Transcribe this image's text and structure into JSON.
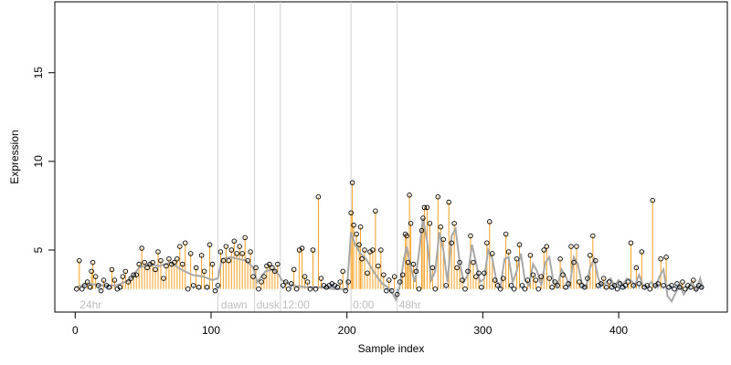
{
  "chart_data": {
    "type": "scatter",
    "title": "",
    "xlabel": "Sample index",
    "ylabel": "Expression",
    "xlim": [
      -15,
      480
    ],
    "ylim": [
      1.5,
      19
    ],
    "xticks": [
      0,
      100,
      200,
      300,
      400
    ],
    "yticks": [
      5,
      10,
      15
    ],
    "grid": false,
    "baseline": 2.8,
    "colors": {
      "points_stroke": "#000000",
      "stems_orange": "#f5a020",
      "stems_blue": "#7aa0d8",
      "smooth_line": "#a8a8a8",
      "separators": "#d0d0d0",
      "condition_labels": "#bdbdbd"
    },
    "conditions": [
      {
        "label": "24hr",
        "x": 2
      },
      {
        "label": "dawn",
        "x": 106
      },
      {
        "label": "dusk",
        "x": 132
      },
      {
        "label": "12:00",
        "x": 151
      },
      {
        "label": "0:00",
        "x": 203
      },
      {
        "label": "48hr",
        "x": 237
      }
    ],
    "separators": [
      105,
      132,
      151,
      203,
      237
    ],
    "points": [
      [
        1,
        2.8
      ],
      [
        3,
        4.4
      ],
      [
        5,
        2.8
      ],
      [
        7,
        3.0
      ],
      [
        9,
        3.2
      ],
      [
        11,
        2.9
      ],
      [
        12,
        3.8
      ],
      [
        13,
        4.3
      ],
      [
        15,
        3.5
      ],
      [
        17,
        3.0
      ],
      [
        19,
        2.7
      ],
      [
        21,
        3.3
      ],
      [
        23,
        3.0
      ],
      [
        25,
        2.9
      ],
      [
        27,
        3.9
      ],
      [
        29,
        3.3
      ],
      [
        31,
        2.8
      ],
      [
        33,
        2.9
      ],
      [
        35,
        3.5
      ],
      [
        37,
        3.8
      ],
      [
        39,
        3.2
      ],
      [
        41,
        3.4
      ],
      [
        43,
        3.6
      ],
      [
        45,
        3.6
      ],
      [
        47,
        4.2
      ],
      [
        49,
        5.1
      ],
      [
        51,
        4.3
      ],
      [
        53,
        4.0
      ],
      [
        55,
        4.2
      ],
      [
        57,
        4.3
      ],
      [
        59,
        3.9
      ],
      [
        61,
        4.9
      ],
      [
        63,
        4.4
      ],
      [
        65,
        3.4
      ],
      [
        67,
        4.1
      ],
      [
        69,
        4.5
      ],
      [
        71,
        4.2
      ],
      [
        73,
        4.3
      ],
      [
        75,
        4.5
      ],
      [
        77,
        5.2
      ],
      [
        79,
        4.2
      ],
      [
        81,
        5.4
      ],
      [
        83,
        2.8
      ],
      [
        85,
        4.8
      ],
      [
        87,
        3.0
      ],
      [
        89,
        4.0
      ],
      [
        91,
        2.9
      ],
      [
        93,
        4.7
      ],
      [
        95,
        3.8
      ],
      [
        97,
        2.9
      ],
      [
        99,
        5.3
      ],
      [
        101,
        4.2
      ],
      [
        103,
        2.7
      ],
      [
        105,
        3.0
      ],
      [
        107,
        4.9
      ],
      [
        109,
        4.4
      ],
      [
        111,
        5.2
      ],
      [
        113,
        4.4
      ],
      [
        115,
        5.0
      ],
      [
        117,
        5.5
      ],
      [
        119,
        4.8
      ],
      [
        121,
        5.2
      ],
      [
        123,
        4.8
      ],
      [
        125,
        5.7
      ],
      [
        127,
        4.4
      ],
      [
        129,
        4.9
      ],
      [
        131,
        3.5
      ],
      [
        133,
        4.0
      ],
      [
        135,
        2.8
      ],
      [
        137,
        3.2
      ],
      [
        139,
        3.5
      ],
      [
        141,
        4.1
      ],
      [
        143,
        4.2
      ],
      [
        145,
        4.0
      ],
      [
        147,
        3.8
      ],
      [
        149,
        4.2
      ],
      [
        153,
        3.0
      ],
      [
        155,
        3.2
      ],
      [
        157,
        2.8
      ],
      [
        159,
        3.1
      ],
      [
        161,
        3.9
      ],
      [
        163,
        2.8
      ],
      [
        165,
        5.0
      ],
      [
        167,
        5.1
      ],
      [
        169,
        3.5
      ],
      [
        171,
        3.2
      ],
      [
        173,
        2.8
      ],
      [
        175,
        5.0
      ],
      [
        177,
        2.8
      ],
      [
        179,
        8.0
      ],
      [
        181,
        3.4
      ],
      [
        183,
        3.0
      ],
      [
        185,
        2.9
      ],
      [
        187,
        3.0
      ],
      [
        189,
        3.1
      ],
      [
        191,
        3.0
      ],
      [
        193,
        2.9
      ],
      [
        195,
        3.2
      ],
      [
        197,
        3.8
      ],
      [
        199,
        2.7
      ],
      [
        201,
        3.2
      ],
      [
        203,
        7.1
      ],
      [
        204,
        8.8
      ],
      [
        205,
        6.4
      ],
      [
        207,
        5.9
      ],
      [
        209,
        5.3
      ],
      [
        210,
        6.3
      ],
      [
        211,
        4.5
      ],
      [
        213,
        5.0
      ],
      [
        215,
        3.7
      ],
      [
        217,
        4.9
      ],
      [
        219,
        5.0
      ],
      [
        221,
        7.2
      ],
      [
        223,
        4.1
      ],
      [
        225,
        5.0
      ],
      [
        227,
        3.6
      ],
      [
        229,
        2.7
      ],
      [
        231,
        3.3
      ],
      [
        233,
        2.7
      ],
      [
        235,
        3.5
      ],
      [
        237,
        2.5
      ],
      [
        239,
        3.2
      ],
      [
        241,
        3.6
      ],
      [
        243,
        5.9
      ],
      [
        244,
        5.8
      ],
      [
        245,
        4.3
      ],
      [
        246,
        8.1
      ],
      [
        247,
        6.5
      ],
      [
        249,
        4.2
      ],
      [
        251,
        3.8
      ],
      [
        253,
        2.8
      ],
      [
        255,
        6.1
      ],
      [
        256,
        6.8
      ],
      [
        257,
        7.4
      ],
      [
        259,
        7.4
      ],
      [
        261,
        6.5
      ],
      [
        263,
        4.0
      ],
      [
        265,
        2.8
      ],
      [
        267,
        8.0
      ],
      [
        269,
        6.3
      ],
      [
        271,
        5.6
      ],
      [
        273,
        3.0
      ],
      [
        275,
        7.7
      ],
      [
        277,
        5.4
      ],
      [
        279,
        6.5
      ],
      [
        281,
        4.0
      ],
      [
        283,
        4.3
      ],
      [
        285,
        3.3
      ],
      [
        287,
        2.8
      ],
      [
        289,
        3.8
      ],
      [
        291,
        5.8
      ],
      [
        293,
        4.3
      ],
      [
        295,
        3.5
      ],
      [
        297,
        3.7
      ],
      [
        299,
        2.9
      ],
      [
        301,
        3.7
      ],
      [
        303,
        5.4
      ],
      [
        305,
        6.6
      ],
      [
        307,
        4.8
      ],
      [
        309,
        3.3
      ],
      [
        311,
        3.0
      ],
      [
        313,
        2.8
      ],
      [
        315,
        3.4
      ],
      [
        317,
        5.9
      ],
      [
        319,
        4.9
      ],
      [
        321,
        3.0
      ],
      [
        323,
        2.8
      ],
      [
        325,
        4.5
      ],
      [
        327,
        5.3
      ],
      [
        329,
        3.0
      ],
      [
        331,
        2.8
      ],
      [
        333,
        3.3
      ],
      [
        335,
        4.7
      ],
      [
        337,
        3.6
      ],
      [
        339,
        3.3
      ],
      [
        341,
        2.8
      ],
      [
        343,
        3.5
      ],
      [
        345,
        5.0
      ],
      [
        347,
        5.2
      ],
      [
        349,
        3.4
      ],
      [
        351,
        2.9
      ],
      [
        353,
        3.2
      ],
      [
        355,
        3.0
      ],
      [
        357,
        4.5
      ],
      [
        359,
        3.6
      ],
      [
        361,
        2.9
      ],
      [
        363,
        3.1
      ],
      [
        365,
        5.2
      ],
      [
        367,
        4.3
      ],
      [
        369,
        5.2
      ],
      [
        371,
        3.2
      ],
      [
        373,
        3.0
      ],
      [
        375,
        2.9
      ],
      [
        377,
        3.4
      ],
      [
        379,
        4.7
      ],
      [
        381,
        5.8
      ],
      [
        383,
        4.4
      ],
      [
        385,
        3.0
      ],
      [
        387,
        3.1
      ],
      [
        389,
        3.4
      ],
      [
        391,
        2.9
      ],
      [
        393,
        3.2
      ],
      [
        395,
        2.9
      ],
      [
        397,
        3.0
      ],
      [
        399,
        2.8
      ],
      [
        401,
        3.1
      ],
      [
        403,
        2.9
      ],
      [
        405,
        3.0
      ],
      [
        407,
        3.2
      ],
      [
        409,
        5.4
      ],
      [
        411,
        3.0
      ],
      [
        413,
        4.0
      ],
      [
        415,
        3.1
      ],
      [
        417,
        4.9
      ],
      [
        419,
        2.9
      ],
      [
        421,
        3.0
      ],
      [
        423,
        2.8
      ],
      [
        425,
        7.8
      ],
      [
        427,
        3.0
      ],
      [
        429,
        3.1
      ],
      [
        431,
        4.5
      ],
      [
        433,
        3.0
      ],
      [
        435,
        4.6
      ],
      [
        437,
        2.9
      ],
      [
        439,
        3.0
      ],
      [
        441,
        2.8
      ],
      [
        443,
        3.1
      ],
      [
        445,
        2.9
      ],
      [
        447,
        3.2
      ],
      [
        449,
        2.8
      ],
      [
        451,
        3.0
      ],
      [
        453,
        2.9
      ],
      [
        455,
        3.3
      ],
      [
        457,
        2.8
      ],
      [
        459,
        3.0
      ],
      [
        461,
        2.9
      ]
    ],
    "line": [
      [
        0,
        2.9
      ],
      [
        10,
        3.1
      ],
      [
        20,
        3.0
      ],
      [
        30,
        3.0
      ],
      [
        40,
        3.3
      ],
      [
        47,
        4.0
      ],
      [
        55,
        4.2
      ],
      [
        62,
        4.1
      ],
      [
        70,
        4.3
      ],
      [
        78,
        3.9
      ],
      [
        86,
        3.6
      ],
      [
        94,
        3.5
      ],
      [
        101,
        3.3
      ],
      [
        105,
        3.4
      ],
      [
        108,
        4.5
      ],
      [
        114,
        4.6
      ],
      [
        120,
        4.5
      ],
      [
        126,
        4.4
      ],
      [
        131,
        4.0
      ],
      [
        134,
        3.2
      ],
      [
        140,
        3.8
      ],
      [
        146,
        3.9
      ],
      [
        150,
        3.6
      ],
      [
        152,
        3.3
      ],
      [
        160,
        3.0
      ],
      [
        170,
        2.9
      ],
      [
        180,
        2.9
      ],
      [
        190,
        2.8
      ],
      [
        200,
        2.8
      ],
      [
        203,
        6.0
      ],
      [
        206,
        5.3
      ],
      [
        210,
        4.8
      ],
      [
        214,
        4.5
      ],
      [
        218,
        4.0
      ],
      [
        222,
        3.5
      ],
      [
        226,
        3.1
      ],
      [
        230,
        2.9
      ],
      [
        234,
        2.5
      ],
      [
        236,
        2.2
      ],
      [
        239,
        3.0
      ],
      [
        242,
        4.5
      ],
      [
        244,
        5.2
      ],
      [
        247,
        4.0
      ],
      [
        250,
        3.2
      ],
      [
        253,
        4.8
      ],
      [
        256,
        6.8
      ],
      [
        259,
        5.5
      ],
      [
        262,
        3.3
      ],
      [
        265,
        3.8
      ],
      [
        268,
        6.0
      ],
      [
        271,
        5.0
      ],
      [
        274,
        3.2
      ],
      [
        277,
        5.8
      ],
      [
        280,
        6.2
      ],
      [
        283,
        4.3
      ],
      [
        286,
        3.2
      ],
      [
        289,
        3.6
      ],
      [
        292,
        5.3
      ],
      [
        295,
        4.3
      ],
      [
        298,
        3.2
      ],
      [
        301,
        3.4
      ],
      [
        304,
        5.0
      ],
      [
        307,
        4.5
      ],
      [
        310,
        3.3
      ],
      [
        313,
        2.9
      ],
      [
        316,
        4.5
      ],
      [
        319,
        4.6
      ],
      [
        322,
        3.2
      ],
      [
        325,
        3.8
      ],
      [
        328,
        4.8
      ],
      [
        331,
        3.3
      ],
      [
        334,
        3.0
      ],
      [
        337,
        4.2
      ],
      [
        340,
        3.8
      ],
      [
        343,
        3.0
      ],
      [
        346,
        4.3
      ],
      [
        349,
        4.6
      ],
      [
        352,
        3.2
      ],
      [
        355,
        3.0
      ],
      [
        358,
        3.9
      ],
      [
        361,
        3.5
      ],
      [
        364,
        3.0
      ],
      [
        367,
        4.6
      ],
      [
        370,
        4.2
      ],
      [
        373,
        3.1
      ],
      [
        376,
        2.9
      ],
      [
        379,
        4.0
      ],
      [
        382,
        4.5
      ],
      [
        385,
        3.4
      ],
      [
        388,
        3.0
      ],
      [
        391,
        3.2
      ],
      [
        394,
        3.4
      ],
      [
        397,
        3.0
      ],
      [
        400,
        3.3
      ],
      [
        403,
        3.0
      ],
      [
        406,
        3.4
      ],
      [
        409,
        3.3
      ],
      [
        412,
        3.0
      ],
      [
        415,
        3.6
      ],
      [
        418,
        3.0
      ],
      [
        421,
        2.9
      ],
      [
        424,
        3.2
      ],
      [
        427,
        2.9
      ],
      [
        430,
        3.5
      ],
      [
        433,
        3.9
      ],
      [
        436,
        2.4
      ],
      [
        439,
        2.1
      ],
      [
        442,
        2.6
      ],
      [
        445,
        3.0
      ],
      [
        448,
        2.5
      ],
      [
        451,
        2.9
      ],
      [
        454,
        3.2
      ],
      [
        457,
        2.7
      ],
      [
        460,
        3.4
      ],
      [
        462,
        2.8
      ]
    ]
  }
}
